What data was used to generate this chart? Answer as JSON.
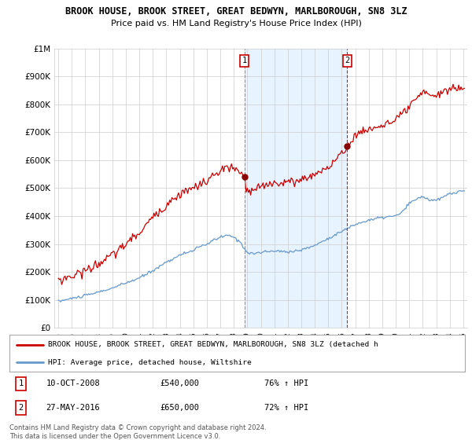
{
  "title": "BROOK HOUSE, BROOK STREET, GREAT BEDWYN, MARLBOROUGH, SN8 3LZ",
  "subtitle": "Price paid vs. HM Land Registry's House Price Index (HPI)",
  "ylim": [
    0,
    1000000
  ],
  "yticks": [
    0,
    100000,
    200000,
    300000,
    400000,
    500000,
    600000,
    700000,
    800000,
    900000,
    1000000
  ],
  "ytick_labels": [
    "£0",
    "£100K",
    "£200K",
    "£300K",
    "£400K",
    "£500K",
    "£600K",
    "£700K",
    "£800K",
    "£900K",
    "£1M"
  ],
  "grid_color": "#cccccc",
  "red_line_color": "#cc0000",
  "blue_line_color": "#6699cc",
  "shade_color": "#ddeeff",
  "sale1_x": 2008.78,
  "sale1_y": 540000,
  "sale2_x": 2016.41,
  "sale2_y": 650000,
  "legend_label_red": "BROOK HOUSE, BROOK STREET, GREAT BEDWYN, MARLBOROUGH, SN8 3LZ (detached h",
  "legend_label_blue": "HPI: Average price, detached house, Wiltshire",
  "sale1_text": "10-OCT-2008",
  "sale1_price": "£540,000",
  "sale1_hpi": "76% ↑ HPI",
  "sale2_text": "27-MAY-2016",
  "sale2_price": "£650,000",
  "sale2_hpi": "72% ↑ HPI",
  "footer": "Contains HM Land Registry data © Crown copyright and database right 2024.\nThis data is licensed under the Open Government Licence v3.0.",
  "xtick_start": 1995,
  "xtick_end": 2025,
  "xlim_left": 1994.7,
  "xlim_right": 2025.3
}
